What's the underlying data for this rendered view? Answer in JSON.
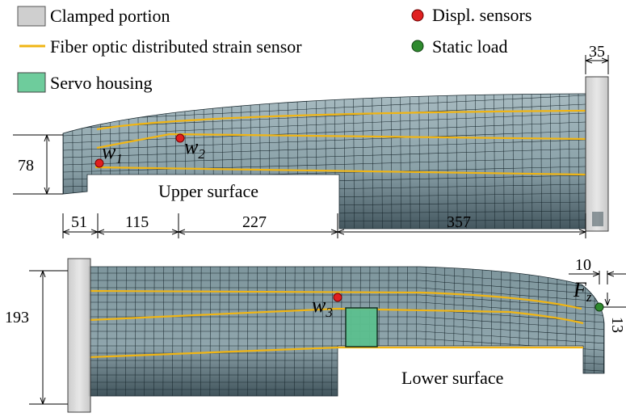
{
  "legend": {
    "clamped": "Clamped portion",
    "fiber": "Fiber optic distributed strain sensor",
    "servo": "Servo housing",
    "displ": "Displ. sensors",
    "load": "Static load"
  },
  "labels": {
    "upper_surface": "Upper surface",
    "lower_surface": "Lower surface",
    "w1_main": "w",
    "w1_sub": "1",
    "w2_main": "w",
    "w2_sub": "2",
    "w3_main": "w",
    "w3_sub": "3",
    "fz_main": "F",
    "fz_sub": "z"
  },
  "dimensions": {
    "top_width": "35",
    "upper_height": "78",
    "seg1": "51",
    "seg2": "115",
    "seg3": "227",
    "seg4": "357",
    "lower_height": "193",
    "load_offset_x": "10",
    "load_offset_y": "13"
  },
  "colors": {
    "mesh": "#8ea4ab",
    "mesh_dark": "#2c3e45",
    "clamp": "#d6d6d6",
    "fiber": "#f0b514",
    "servo": "#5cc08f",
    "displ_sensor": "#e02020",
    "static_load": "#2f8a2f"
  }
}
